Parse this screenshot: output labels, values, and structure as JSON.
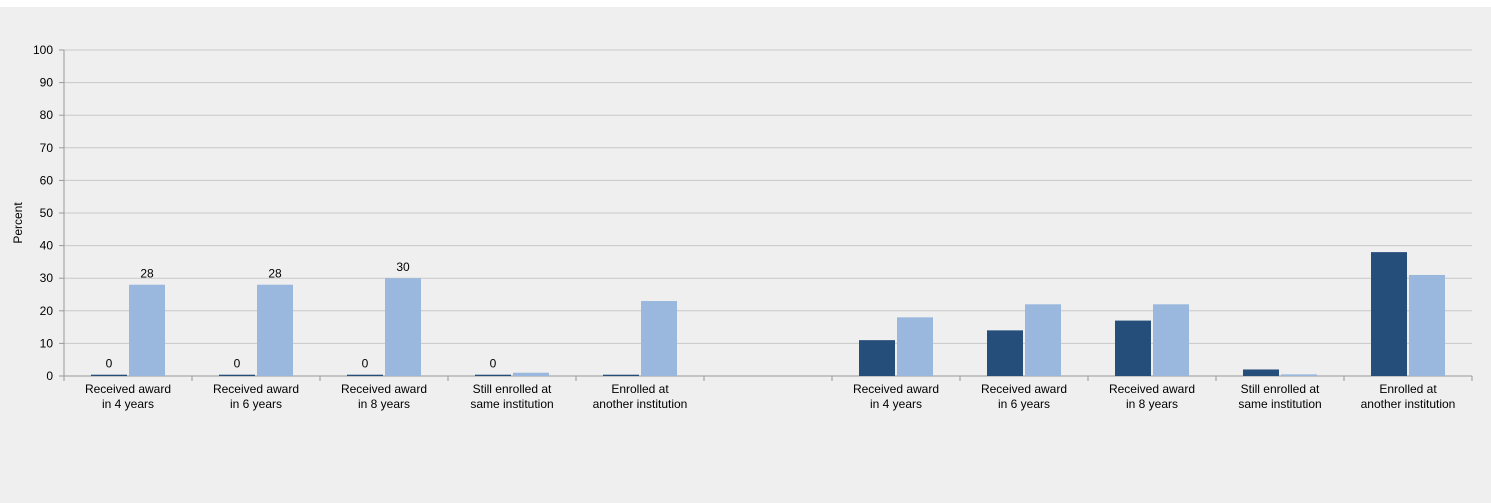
{
  "chart_data": {
    "type": "bar",
    "ylabel": "Percent",
    "ylim": [
      0,
      100
    ],
    "yticks": [
      0,
      10,
      20,
      30,
      40,
      50,
      60,
      70,
      80,
      90,
      100
    ],
    "grid": true,
    "categories": [
      [
        "Received award",
        "in 4 years"
      ],
      [
        "Received award",
        "in 6 years"
      ],
      [
        "Received award",
        "in 8 years"
      ],
      [
        "Still enrolled at",
        "same institution"
      ],
      [
        "Enrolled at",
        "another institution"
      ],
      [
        "",
        ""
      ],
      [
        "Received award",
        "in 4 years"
      ],
      [
        "Received award",
        "in 6 years"
      ],
      [
        "Received award",
        "in 8 years"
      ],
      [
        "Still enrolled at",
        "same institution"
      ],
      [
        "Enrolled at",
        "another institution"
      ]
    ],
    "series": [
      {
        "color": "#264e7a",
        "values": [
          0.4,
          0.4,
          0.4,
          0.4,
          0.4,
          null,
          11,
          14,
          17,
          2,
          38
        ],
        "labels": [
          "0",
          "0",
          "0",
          "0",
          "",
          "",
          "",
          "",
          "",
          "",
          ""
        ]
      },
      {
        "color": "#9ab8de",
        "values": [
          28,
          28,
          30,
          1,
          23,
          null,
          18,
          22,
          22,
          0.5,
          31
        ],
        "labels": [
          "28",
          "28",
          "30",
          "",
          "",
          "",
          "",
          "",
          "",
          "",
          ""
        ]
      }
    ]
  }
}
